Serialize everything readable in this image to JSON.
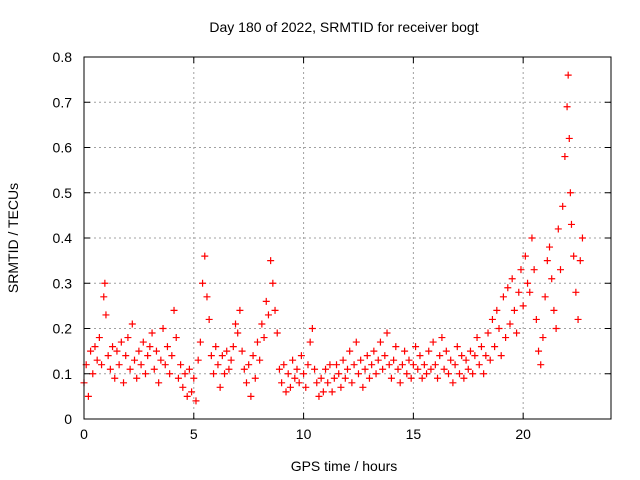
{
  "chart_data": {
    "type": "scatter",
    "title": "Day 180 of 2022, SRMTID for receiver bogt",
    "xlabel": "GPS time / hours",
    "ylabel": "SRMTID / TECUs",
    "xlim": [
      0,
      24
    ],
    "ylim": [
      0,
      0.8
    ],
    "xticks": [
      0,
      5,
      10,
      15,
      20
    ],
    "xtick_labels": [
      "0",
      "5",
      "10",
      "15",
      "20"
    ],
    "yticks": [
      0,
      0.1,
      0.2,
      0.3,
      0.4,
      0.5,
      0.6,
      0.7,
      0.8
    ],
    "ytick_labels": [
      "0",
      "0.1",
      "0.2",
      "0.3",
      "0.4",
      "0.5",
      "0.6",
      "0.7",
      "0.8"
    ],
    "grid": true,
    "marker": "plus",
    "color": "#ff0000",
    "series": [
      {
        "name": "SRMTID",
        "points": [
          [
            0.0,
            0.08
          ],
          [
            0.1,
            0.12
          ],
          [
            0.2,
            0.05
          ],
          [
            0.3,
            0.15
          ],
          [
            0.4,
            0.1
          ],
          [
            0.5,
            0.16
          ],
          [
            0.6,
            0.13
          ],
          [
            0.7,
            0.18
          ],
          [
            0.8,
            0.12
          ],
          [
            0.9,
            0.27
          ],
          [
            0.95,
            0.3
          ],
          [
            1.0,
            0.23
          ],
          [
            1.1,
            0.14
          ],
          [
            1.2,
            0.11
          ],
          [
            1.3,
            0.16
          ],
          [
            1.4,
            0.09
          ],
          [
            1.5,
            0.15
          ],
          [
            1.6,
            0.12
          ],
          [
            1.7,
            0.17
          ],
          [
            1.8,
            0.08
          ],
          [
            1.9,
            0.14
          ],
          [
            2.0,
            0.18
          ],
          [
            2.1,
            0.11
          ],
          [
            2.2,
            0.21
          ],
          [
            2.3,
            0.13
          ],
          [
            2.4,
            0.09
          ],
          [
            2.5,
            0.15
          ],
          [
            2.6,
            0.12
          ],
          [
            2.7,
            0.17
          ],
          [
            2.8,
            0.1
          ],
          [
            2.9,
            0.14
          ],
          [
            3.0,
            0.16
          ],
          [
            3.1,
            0.19
          ],
          [
            3.2,
            0.11
          ],
          [
            3.3,
            0.15
          ],
          [
            3.4,
            0.08
          ],
          [
            3.5,
            0.13
          ],
          [
            3.6,
            0.2
          ],
          [
            3.7,
            0.12
          ],
          [
            3.8,
            0.16
          ],
          [
            3.9,
            0.1
          ],
          [
            4.0,
            0.14
          ],
          [
            4.1,
            0.24
          ],
          [
            4.2,
            0.18
          ],
          [
            4.3,
            0.09
          ],
          [
            4.4,
            0.12
          ],
          [
            4.5,
            0.07
          ],
          [
            4.6,
            0.1
          ],
          [
            4.7,
            0.05
          ],
          [
            4.8,
            0.11
          ],
          [
            4.9,
            0.06
          ],
          [
            5.0,
            0.09
          ],
          [
            5.1,
            0.04
          ],
          [
            5.2,
            0.13
          ],
          [
            5.3,
            0.17
          ],
          [
            5.4,
            0.3
          ],
          [
            5.5,
            0.36
          ],
          [
            5.6,
            0.27
          ],
          [
            5.7,
            0.22
          ],
          [
            5.8,
            0.14
          ],
          [
            5.9,
            0.1
          ],
          [
            6.0,
            0.16
          ],
          [
            6.1,
            0.12
          ],
          [
            6.2,
            0.07
          ],
          [
            6.3,
            0.14
          ],
          [
            6.4,
            0.1
          ],
          [
            6.5,
            0.15
          ],
          [
            6.6,
            0.11
          ],
          [
            6.7,
            0.13
          ],
          [
            6.8,
            0.16
          ],
          [
            6.9,
            0.21
          ],
          [
            7.0,
            0.19
          ],
          [
            7.1,
            0.24
          ],
          [
            7.2,
            0.15
          ],
          [
            7.3,
            0.11
          ],
          [
            7.4,
            0.08
          ],
          [
            7.5,
            0.12
          ],
          [
            7.6,
            0.05
          ],
          [
            7.7,
            0.14
          ],
          [
            7.8,
            0.09
          ],
          [
            7.9,
            0.17
          ],
          [
            8.0,
            0.13
          ],
          [
            8.1,
            0.21
          ],
          [
            8.2,
            0.18
          ],
          [
            8.3,
            0.26
          ],
          [
            8.4,
            0.23
          ],
          [
            8.5,
            0.35
          ],
          [
            8.6,
            0.3
          ],
          [
            8.7,
            0.24
          ],
          [
            8.8,
            0.19
          ],
          [
            8.9,
            0.11
          ],
          [
            9.0,
            0.08
          ],
          [
            9.1,
            0.12
          ],
          [
            9.2,
            0.06
          ],
          [
            9.3,
            0.1
          ],
          [
            9.4,
            0.07
          ],
          [
            9.5,
            0.13
          ],
          [
            9.6,
            0.09
          ],
          [
            9.7,
            0.11
          ],
          [
            9.8,
            0.08
          ],
          [
            9.9,
            0.14
          ],
          [
            10.0,
            0.1
          ],
          [
            10.1,
            0.07
          ],
          [
            10.2,
            0.12
          ],
          [
            10.3,
            0.17
          ],
          [
            10.4,
            0.2
          ],
          [
            10.5,
            0.11
          ],
          [
            10.6,
            0.08
          ],
          [
            10.7,
            0.05
          ],
          [
            10.8,
            0.09
          ],
          [
            10.9,
            0.06
          ],
          [
            11.0,
            0.11
          ],
          [
            11.1,
            0.08
          ],
          [
            11.2,
            0.12
          ],
          [
            11.3,
            0.06
          ],
          [
            11.4,
            0.09
          ],
          [
            11.5,
            0.12
          ],
          [
            11.6,
            0.1
          ],
          [
            11.7,
            0.07
          ],
          [
            11.8,
            0.13
          ],
          [
            11.9,
            0.09
          ],
          [
            12.0,
            0.11
          ],
          [
            12.1,
            0.15
          ],
          [
            12.2,
            0.08
          ],
          [
            12.3,
            0.12
          ],
          [
            12.4,
            0.17
          ],
          [
            12.5,
            0.1
          ],
          [
            12.6,
            0.13
          ],
          [
            12.7,
            0.07
          ],
          [
            12.8,
            0.11
          ],
          [
            12.9,
            0.14
          ],
          [
            13.0,
            0.09
          ],
          [
            13.1,
            0.12
          ],
          [
            13.2,
            0.15
          ],
          [
            13.3,
            0.1
          ],
          [
            13.4,
            0.13
          ],
          [
            13.5,
            0.17
          ],
          [
            13.6,
            0.11
          ],
          [
            13.7,
            0.14
          ],
          [
            13.8,
            0.19
          ],
          [
            13.9,
            0.12
          ],
          [
            14.0,
            0.09
          ],
          [
            14.1,
            0.13
          ],
          [
            14.2,
            0.16
          ],
          [
            14.3,
            0.11
          ],
          [
            14.4,
            0.08
          ],
          [
            14.5,
            0.12
          ],
          [
            14.6,
            0.15
          ],
          [
            14.7,
            0.1
          ],
          [
            14.8,
            0.13
          ],
          [
            14.9,
            0.09
          ],
          [
            15.0,
            0.12
          ],
          [
            15.1,
            0.16
          ],
          [
            15.2,
            0.11
          ],
          [
            15.3,
            0.14
          ],
          [
            15.4,
            0.09
          ],
          [
            15.5,
            0.12
          ],
          [
            15.6,
            0.1
          ],
          [
            15.7,
            0.15
          ],
          [
            15.8,
            0.11
          ],
          [
            15.9,
            0.17
          ],
          [
            16.0,
            0.12
          ],
          [
            16.1,
            0.09
          ],
          [
            16.2,
            0.14
          ],
          [
            16.3,
            0.18
          ],
          [
            16.4,
            0.11
          ],
          [
            16.5,
            0.15
          ],
          [
            16.6,
            0.1
          ],
          [
            16.7,
            0.13
          ],
          [
            16.8,
            0.08
          ],
          [
            16.9,
            0.12
          ],
          [
            17.0,
            0.16
          ],
          [
            17.1,
            0.1
          ],
          [
            17.2,
            0.14
          ],
          [
            17.3,
            0.09
          ],
          [
            17.4,
            0.13
          ],
          [
            17.5,
            0.11
          ],
          [
            17.6,
            0.15
          ],
          [
            17.7,
            0.1
          ],
          [
            17.8,
            0.14
          ],
          [
            17.9,
            0.18
          ],
          [
            18.0,
            0.12
          ],
          [
            18.1,
            0.16
          ],
          [
            18.2,
            0.1
          ],
          [
            18.3,
            0.14
          ],
          [
            18.4,
            0.19
          ],
          [
            18.5,
            0.13
          ],
          [
            18.6,
            0.22
          ],
          [
            18.7,
            0.16
          ],
          [
            18.8,
            0.24
          ],
          [
            18.9,
            0.2
          ],
          [
            19.0,
            0.14
          ],
          [
            19.1,
            0.27
          ],
          [
            19.2,
            0.18
          ],
          [
            19.3,
            0.29
          ],
          [
            19.4,
            0.21
          ],
          [
            19.5,
            0.31
          ],
          [
            19.6,
            0.24
          ],
          [
            19.7,
            0.19
          ],
          [
            19.8,
            0.28
          ],
          [
            19.9,
            0.33
          ],
          [
            20.0,
            0.25
          ],
          [
            20.1,
            0.36
          ],
          [
            20.2,
            0.3
          ],
          [
            20.3,
            0.28
          ],
          [
            20.4,
            0.4
          ],
          [
            20.5,
            0.33
          ],
          [
            20.6,
            0.22
          ],
          [
            20.7,
            0.15
          ],
          [
            20.8,
            0.12
          ],
          [
            20.9,
            0.18
          ],
          [
            21.0,
            0.27
          ],
          [
            21.1,
            0.35
          ],
          [
            21.2,
            0.38
          ],
          [
            21.3,
            0.31
          ],
          [
            21.4,
            0.24
          ],
          [
            21.5,
            0.2
          ],
          [
            21.6,
            0.42
          ],
          [
            21.7,
            0.33
          ],
          [
            21.8,
            0.47
          ],
          [
            21.9,
            0.58
          ],
          [
            22.0,
            0.69
          ],
          [
            22.05,
            0.76
          ],
          [
            22.1,
            0.62
          ],
          [
            22.15,
            0.5
          ],
          [
            22.2,
            0.43
          ],
          [
            22.3,
            0.36
          ],
          [
            22.4,
            0.28
          ],
          [
            22.5,
            0.22
          ],
          [
            22.6,
            0.35
          ],
          [
            22.7,
            0.4
          ]
        ]
      }
    ]
  }
}
